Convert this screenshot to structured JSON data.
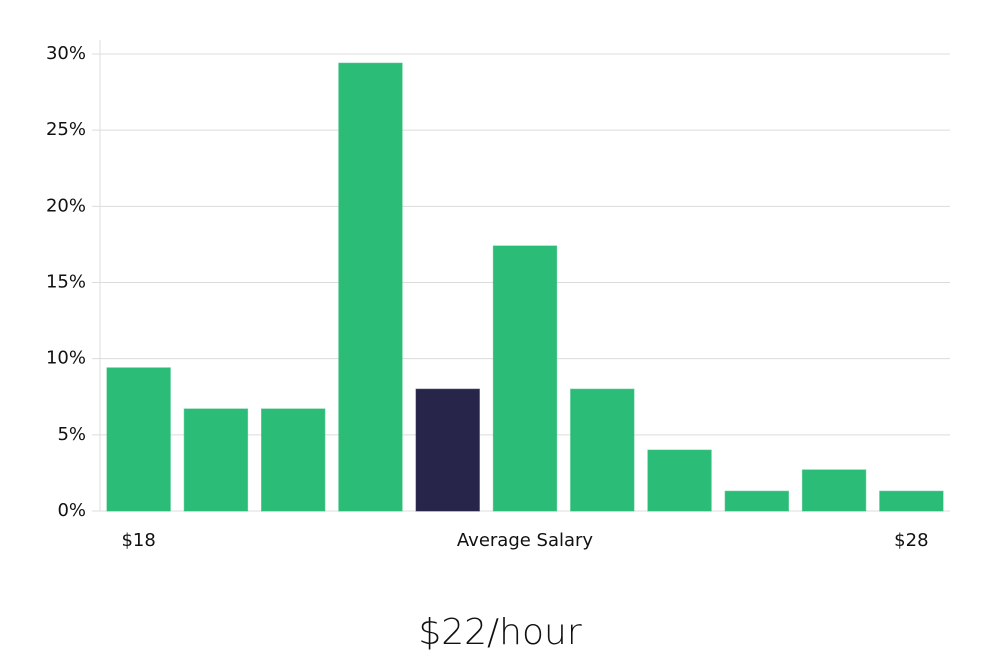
{
  "chart_data": {
    "type": "bar",
    "subtitle": "$22/hour",
    "x_label": "Average Salary",
    "categories": [
      "$18",
      null,
      null,
      null,
      null,
      null,
      null,
      null,
      null,
      null,
      "$28"
    ],
    "values": [
      9.4,
      6.7,
      6.7,
      29.4,
      8.0,
      17.4,
      8.0,
      4.0,
      1.3,
      2.7,
      1.3
    ],
    "colors": [
      "#2bbd77",
      "#2bbd77",
      "#2bbd77",
      "#2bbd77",
      "#27264a",
      "#2bbd77",
      "#2bbd77",
      "#2bbd77",
      "#2bbd77",
      "#2bbd77",
      "#2bbd77"
    ],
    "ylim": [
      0,
      30
    ],
    "yticks": [
      {
        "value": 0,
        "label": "0%"
      },
      {
        "value": 5,
        "label": "5%"
      },
      {
        "value": 10,
        "label": "10%"
      },
      {
        "value": 15,
        "label": "15%"
      },
      {
        "value": 20,
        "label": "20%"
      },
      {
        "value": 25,
        "label": "25%"
      },
      {
        "value": 30,
        "label": "30%"
      }
    ],
    "grid": true
  }
}
